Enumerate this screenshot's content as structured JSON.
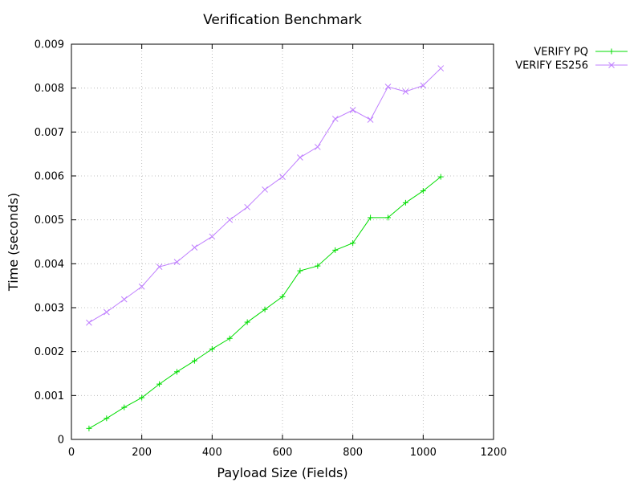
{
  "chart_data": {
    "type": "line",
    "title": "Verification Benchmark",
    "xlabel": "Payload Size (Fields)",
    "ylabel": "Time (seconds)",
    "xlim": [
      0,
      1200
    ],
    "ylim": [
      0,
      0.009
    ],
    "x_ticks": [
      "0",
      "200",
      "400",
      "600",
      "800",
      "1000",
      "1200"
    ],
    "y_ticks": [
      "0",
      "0.001",
      "0.002",
      "0.003",
      "0.004",
      "0.005",
      "0.006",
      "0.007",
      "0.008",
      "0.009"
    ],
    "grid": true,
    "legend_position": "outside-top-right",
    "x": [
      50,
      100,
      150,
      200,
      250,
      300,
      350,
      400,
      450,
      500,
      550,
      600,
      650,
      700,
      750,
      800,
      850,
      900,
      950,
      1000,
      1050
    ],
    "series": [
      {
        "name": "VERIFY PQ",
        "color": "#00dd00",
        "marker": "plus",
        "values": [
          0.00025,
          0.00048,
          0.00073,
          0.00095,
          0.00126,
          0.00154,
          0.00179,
          0.00206,
          0.0023,
          0.00267,
          0.00296,
          0.00325,
          0.00384,
          0.00395,
          0.00431,
          0.00447,
          0.00505,
          0.00505,
          0.00539,
          0.00566,
          0.00598
        ]
      },
      {
        "name": "VERIFY ES256",
        "color": "#c080ff",
        "marker": "cross",
        "values": [
          0.00266,
          0.0029,
          0.00319,
          0.00348,
          0.00393,
          0.00404,
          0.00437,
          0.00462,
          0.005,
          0.00529,
          0.00569,
          0.00598,
          0.00642,
          0.00666,
          0.0073,
          0.0075,
          0.00728,
          0.00803,
          0.00792,
          0.00806,
          0.00845
        ]
      }
    ]
  }
}
